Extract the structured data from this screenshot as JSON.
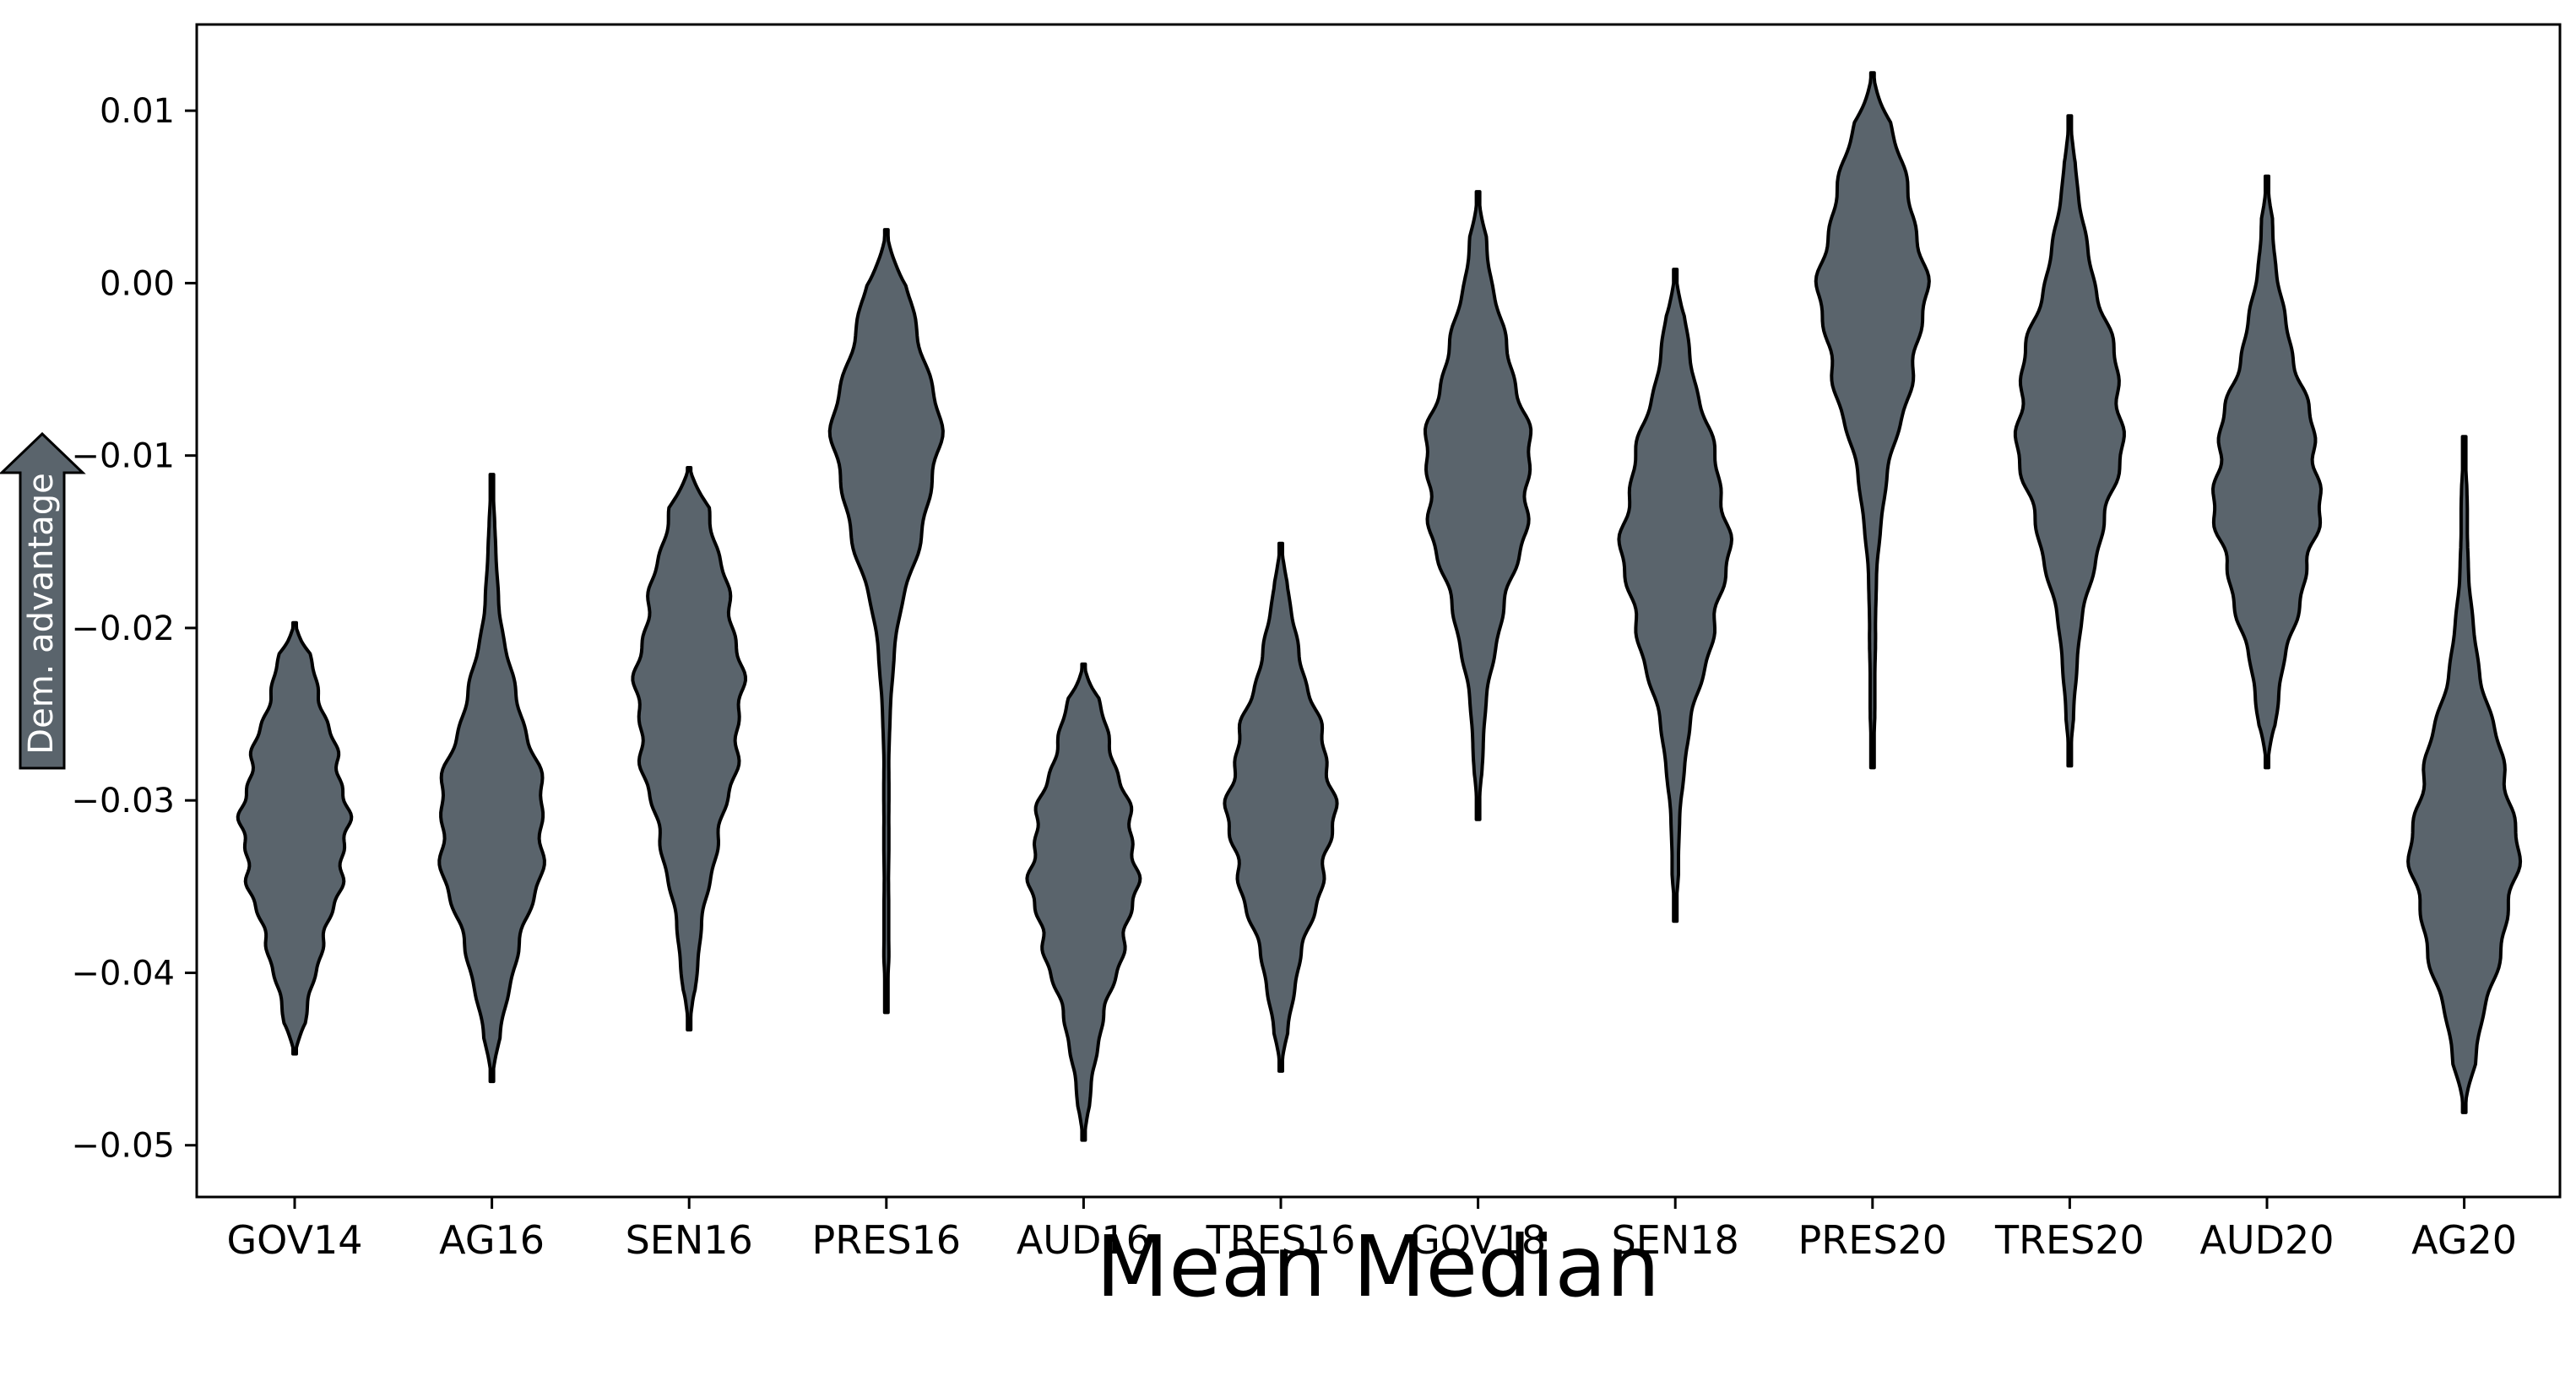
{
  "chart_data": {
    "type": "violin",
    "xlabel": "Mean Median",
    "ylabel": "Dem. advantage",
    "ylim": [
      -0.053,
      0.015
    ],
    "yticks": [
      0.01,
      0.0,
      -0.01,
      -0.02,
      -0.03,
      -0.04,
      -0.05
    ],
    "ytick_labels": [
      "0.01",
      "0.00",
      "−0.01",
      "−0.02",
      "−0.03",
      "−0.04",
      "−0.05"
    ],
    "grid": false,
    "categories": [
      "GOV14",
      "AG16",
      "SEN16",
      "PRES16",
      "AUD16",
      "TRES16",
      "GOV18",
      "SEN18",
      "PRES20",
      "TRES20",
      "AUD20",
      "AG20"
    ],
    "violins": [
      {
        "name": "GOV14",
        "min": -0.0447,
        "max": -0.0197,
        "peak": -0.0315,
        "width": 0.27,
        "spread": 0.006
      },
      {
        "name": "AG16",
        "min": -0.0463,
        "max": -0.0111,
        "peak": -0.0315,
        "width": 0.27,
        "spread": 0.006
      },
      {
        "name": "SEN16",
        "min": -0.0433,
        "max": -0.0107,
        "peak": -0.024,
        "width": 0.27,
        "spread": 0.0075
      },
      {
        "name": "PRES16",
        "min": -0.0423,
        "max": 0.0031,
        "peak": -0.009,
        "width": 0.27,
        "spread": 0.006
      },
      {
        "name": "AUD16",
        "min": -0.0497,
        "max": -0.0221,
        "peak": -0.034,
        "width": 0.27,
        "spread": 0.006
      },
      {
        "name": "TRES16",
        "min": -0.0457,
        "max": -0.0151,
        "peak": -0.0305,
        "width": 0.27,
        "spread": 0.006
      },
      {
        "name": "GOV18",
        "min": -0.0311,
        "max": 0.0053,
        "peak": -0.011,
        "width": 0.27,
        "spread": 0.0065
      },
      {
        "name": "SEN18",
        "min": -0.037,
        "max": 0.0008,
        "peak": -0.015,
        "width": 0.27,
        "spread": 0.0065
      },
      {
        "name": "PRES20",
        "min": -0.0281,
        "max": 0.0122,
        "peak": -0.0005,
        "width": 0.27,
        "spread": 0.0065
      },
      {
        "name": "TRES20",
        "min": -0.028,
        "max": 0.0097,
        "peak": -0.008,
        "width": 0.27,
        "spread": 0.0065
      },
      {
        "name": "AUD20",
        "min": -0.0281,
        "max": 0.0062,
        "peak": -0.012,
        "width": 0.27,
        "spread": 0.0065
      },
      {
        "name": "AG20",
        "min": -0.0481,
        "max": -0.0089,
        "peak": -0.033,
        "width": 0.27,
        "spread": 0.0065
      }
    ],
    "colors": {
      "violin_fill": "#5a646c",
      "violin_edge": "#000000",
      "arrow_fill": "#5a646c"
    }
  }
}
